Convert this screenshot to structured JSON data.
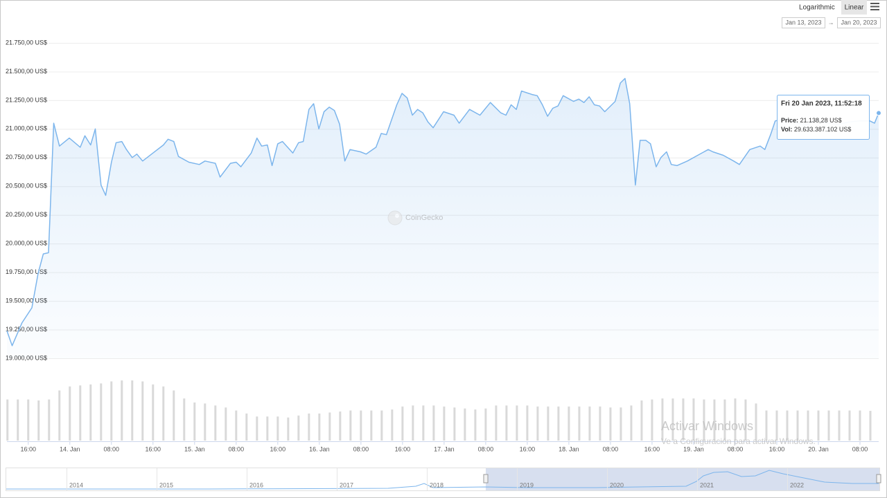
{
  "chart_data": {
    "type": "line",
    "color": "#7cb5ec",
    "log_scale": false,
    "scale_options": [
      "Logarithmic",
      "Linear"
    ],
    "date_range": [
      "Jan 13, 2023",
      "Jan 20, 2023"
    ],
    "date_separator": "→",
    "watermark": "CoinGecko",
    "xlim": [
      11.9,
      179.6
    ],
    "xticks": [
      {
        "value": 16,
        "label": "16:00"
      },
      {
        "value": 24,
        "label": "14. Jan"
      },
      {
        "value": 32,
        "label": "08:00"
      },
      {
        "value": 40,
        "label": "16:00"
      },
      {
        "value": 48,
        "label": "15. Jan"
      },
      {
        "value": 56,
        "label": "08:00"
      },
      {
        "value": 64,
        "label": "16:00"
      },
      {
        "value": 72,
        "label": "16. Jan"
      },
      {
        "value": 80,
        "label": "08:00"
      },
      {
        "value": 88,
        "label": "16:00"
      },
      {
        "value": 96,
        "label": "17. Jan"
      },
      {
        "value": 104,
        "label": "08:00"
      },
      {
        "value": 112,
        "label": "16:00"
      },
      {
        "value": 120,
        "label": "18. Jan"
      },
      {
        "value": 128,
        "label": "08:00"
      },
      {
        "value": 136,
        "label": "16:00"
      },
      {
        "value": 144,
        "label": "19. Jan"
      },
      {
        "value": 152,
        "label": "08:00"
      },
      {
        "value": 160,
        "label": "16:00"
      },
      {
        "value": 168,
        "label": "20. Jan"
      },
      {
        "value": 176,
        "label": "08:00"
      }
    ],
    "ylim": [
      19000,
      21750
    ],
    "yticks": [
      {
        "value": 19000,
        "label": "19.000,00 US$"
      },
      {
        "value": 19250,
        "label": "19.250,00 US$"
      },
      {
        "value": 19500,
        "label": "19.500,00 US$"
      },
      {
        "value": 19750,
        "label": "19.750,00 US$"
      },
      {
        "value": 20000,
        "label": "20.000,00 US$"
      },
      {
        "value": 20250,
        "label": "20.250,00 US$"
      },
      {
        "value": 20500,
        "label": "20.500,00 US$"
      },
      {
        "value": 20750,
        "label": "20.750,00 US$"
      },
      {
        "value": 21000,
        "label": "21.000,00 US$"
      },
      {
        "value": 21250,
        "label": "21.250,00 US$"
      },
      {
        "value": 21500,
        "label": "21.500,00 US$"
      },
      {
        "value": 21750,
        "label": "21.750,00 US$"
      }
    ],
    "grid": true,
    "x": [
      11.9,
      12.9,
      14.8,
      16.7,
      17.9,
      18.9,
      19.9,
      20.9,
      22.0,
      23.9,
      26.0,
      26.9,
      28.0,
      28.9,
      30.0,
      30.9,
      32.0,
      32.9,
      34.0,
      34.9,
      36.0,
      36.9,
      38.0,
      40.0,
      42.0,
      42.9,
      44.0,
      44.9,
      46.9,
      48.9,
      50.0,
      52.0,
      52.9,
      54.9,
      56.0,
      56.9,
      58.9,
      60.0,
      60.9,
      62.0,
      62.9,
      64.0,
      64.9,
      66.9,
      68.0,
      68.9,
      70.0,
      70.9,
      71.9,
      72.9,
      73.9,
      74.9,
      75.9,
      76.9,
      77.9,
      79.9,
      81.0,
      82.9,
      83.9,
      84.9,
      86.9,
      87.9,
      88.9,
      89.9,
      90.9,
      91.9,
      92.9,
      93.9,
      95.9,
      97.9,
      98.9,
      100.9,
      102.9,
      104.9,
      106.9,
      107.9,
      108.9,
      109.9,
      110.9,
      112.9,
      113.9,
      114.9,
      115.9,
      116.9,
      117.9,
      118.9,
      120.9,
      121.9,
      122.9,
      123.9,
      124.9,
      125.9,
      126.9,
      128.9,
      129.9,
      130.8,
      131.7,
      132.8,
      133.7,
      134.8,
      135.7,
      136.8,
      137.7,
      138.8,
      139.7,
      140.8,
      142.8,
      144.8,
      146.8,
      147.7,
      149.7,
      151.7,
      152.8,
      154.8,
      156.8,
      157.7,
      158.8,
      159.7,
      161.9,
      163.9,
      165.9,
      167.9,
      169.9,
      171.9,
      173.9,
      175.9,
      177.9,
      178.8,
      179.6
    ],
    "values": [
      19240,
      19110,
      19310,
      19440,
      19740,
      19910,
      19920,
      21050,
      20850,
      20920,
      20840,
      20940,
      20860,
      21000,
      20510,
      20420,
      20710,
      20880,
      20890,
      20820,
      20750,
      20780,
      20720,
      20790,
      20860,
      20910,
      20890,
      20760,
      20710,
      20690,
      20720,
      20700,
      20580,
      20700,
      20710,
      20670,
      20790,
      20920,
      20850,
      20860,
      20680,
      20870,
      20890,
      20790,
      20880,
      20890,
      21170,
      21220,
      21000,
      21150,
      21190,
      21160,
      21040,
      20720,
      20820,
      20800,
      20780,
      20840,
      20960,
      20950,
      21210,
      21310,
      21270,
      21120,
      21170,
      21140,
      21060,
      21010,
      21150,
      21120,
      21050,
      21170,
      21120,
      21230,
      21140,
      21120,
      21210,
      21170,
      21330,
      21300,
      21290,
      21210,
      21110,
      21180,
      21200,
      21290,
      21240,
      21260,
      21230,
      21280,
      21210,
      21200,
      21150,
      21240,
      21400,
      21440,
      21220,
      20510,
      20900,
      20900,
      20870,
      20670,
      20750,
      20800,
      20690,
      20680,
      20720,
      20770,
      20820,
      20800,
      20770,
      20720,
      20690,
      20820,
      20850,
      20820,
      20950,
      21070,
      21090,
      21050,
      21040,
      21080,
      21050,
      21040,
      21060,
      21070,
      21070,
      21050,
      21138.28
    ],
    "volume": {
      "color": "#d9d9d9",
      "x": [
        12,
        14,
        16,
        18,
        20,
        22,
        24,
        26,
        28,
        30,
        32,
        34,
        36,
        38,
        40,
        42,
        44,
        46,
        48,
        50,
        52,
        54,
        56,
        58,
        60,
        62,
        64,
        66,
        68,
        70,
        72,
        74,
        76,
        78,
        80,
        82,
        84,
        86,
        88,
        90,
        92,
        94,
        96,
        98,
        100,
        102,
        104,
        106,
        108,
        110,
        112,
        114,
        116,
        118,
        120,
        122,
        124,
        126,
        128,
        130,
        132,
        134,
        136,
        138,
        140,
        142,
        144,
        146,
        148,
        150,
        152,
        154,
        156,
        158,
        160,
        162,
        164,
        166,
        168,
        170,
        172,
        174,
        176,
        178
      ],
      "values": [
        41000000000,
        41000000000,
        41000000000,
        40000000000,
        41000000000,
        50000000000,
        54000000000,
        55000000000,
        56000000000,
        57000000000,
        59000000000,
        60000000000,
        60000000000,
        59000000000,
        56000000000,
        54000000000,
        50000000000,
        42000000000,
        38000000000,
        37000000000,
        35000000000,
        33000000000,
        30000000000,
        27000000000,
        24000000000,
        24000000000,
        24000000000,
        23000000000,
        25000000000,
        27000000000,
        27000000000,
        28000000000,
        29000000000,
        30000000000,
        30000000000,
        30000000000,
        30000000000,
        31000000000,
        34000000000,
        35000000000,
        35000000000,
        35000000000,
        34000000000,
        33000000000,
        32000000000,
        31000000000,
        32000000000,
        35000000000,
        35000000000,
        35000000000,
        35000000000,
        34000000000,
        34000000000,
        34000000000,
        34000000000,
        34000000000,
        34000000000,
        34000000000,
        33000000000,
        33000000000,
        35000000000,
        40000000000,
        41000000000,
        42000000000,
        42000000000,
        42000000000,
        42000000000,
        41000000000,
        41000000000,
        41000000000,
        42000000000,
        41000000000,
        37000000000,
        30000000000,
        30000000000,
        30000000000,
        30000000000,
        30000000000,
        30000000000,
        30000000000,
        30000000000,
        30000000000,
        30000000000,
        29633387102
      ]
    },
    "tooltip": {
      "title": "Fri 20 Jan 2023, 11:52:18",
      "price_label": "Price:",
      "price": "21.138,28 US$",
      "volume_label": "Vol:",
      "volume": "29.633.387.102 US$"
    },
    "navigator": {
      "labels": [
        "2014",
        "2015",
        "2016",
        "2017",
        "2018",
        "2019",
        "2020",
        "2021",
        "2022"
      ]
    },
    "os_watermark": {
      "title": "Activar Windows",
      "subtitle": "Ve a Configuración para activar Windows."
    }
  }
}
